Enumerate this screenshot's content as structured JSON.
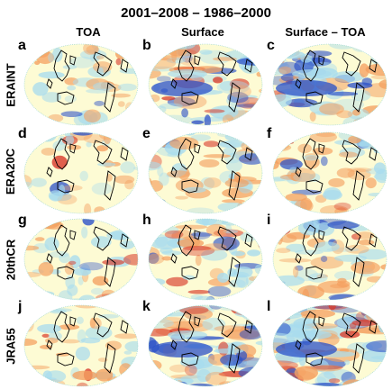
{
  "title": "2001–2008 – 1986–2000",
  "columns": [
    {
      "label": "TOA"
    },
    {
      "label": "Surface"
    },
    {
      "label": "Surface – TOA"
    }
  ],
  "rows": [
    {
      "label": "ERAINT",
      "panels": [
        {
          "letter": "a",
          "intensity": 0.35
        },
        {
          "letter": "b",
          "intensity": 0.8
        },
        {
          "letter": "c",
          "intensity": 0.75
        }
      ]
    },
    {
      "label": "ERA20C",
      "panels": [
        {
          "letter": "d",
          "intensity": 0.2
        },
        {
          "letter": "e",
          "intensity": 0.55
        },
        {
          "letter": "f",
          "intensity": 0.55
        }
      ]
    },
    {
      "label": "20thCR",
      "panels": [
        {
          "letter": "g",
          "intensity": 0.3
        },
        {
          "letter": "h",
          "intensity": 0.6
        },
        {
          "letter": "i",
          "intensity": 0.6
        }
      ]
    },
    {
      "label": "JRA55",
      "panels": [
        {
          "letter": "j",
          "intensity": 0.35
        },
        {
          "letter": "k",
          "intensity": 0.95
        },
        {
          "letter": "l",
          "intensity": 0.95
        }
      ]
    }
  ],
  "colors": {
    "neutral": "#fdfbd4",
    "warm": "#f4a060",
    "hot": "#d83a2a",
    "cool": "#a8dcee",
    "cold": "#2a50c8",
    "coast": "#000000"
  }
}
